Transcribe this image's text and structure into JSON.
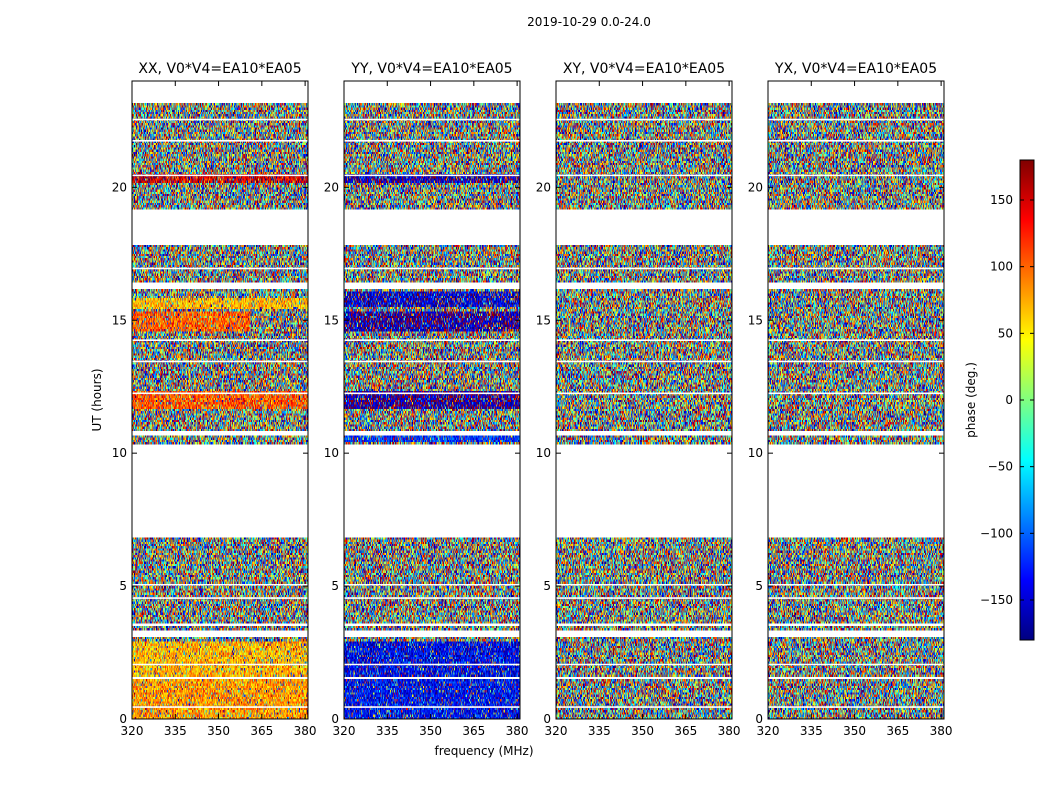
{
  "figure": {
    "suptitle": "2019-10-29 0.0-24.0",
    "xlabel": "frequency (MHz)",
    "ylabel": "UT (hours)"
  },
  "chart_data": {
    "type": "heatmap",
    "x_range": [
      320,
      381
    ],
    "y_range": [
      0,
      24
    ],
    "x_ticks": [
      320,
      335,
      350,
      365,
      380
    ],
    "y_ticks": [
      0,
      5,
      10,
      15,
      20
    ],
    "panels": [
      {
        "title": "XX, V0*V4=EA10*EA05",
        "pol": "XX"
      },
      {
        "title": "YY, V0*V4=EA10*EA05",
        "pol": "YY"
      },
      {
        "title": "XY, V0*V4=EA10*EA05",
        "pol": "XY"
      },
      {
        "title": "YX, V0*V4=EA10*EA05",
        "pol": "YX"
      }
    ],
    "data_intervals_hours": [
      [
        0.0,
        1.5
      ],
      [
        1.6,
        3.1
      ],
      [
        3.3,
        3.5
      ],
      [
        3.6,
        6.8
      ],
      [
        10.3,
        10.7
      ],
      [
        10.8,
        16.2
      ],
      [
        16.4,
        17.8
      ],
      [
        19.2,
        23.2
      ]
    ],
    "horizontal_gap_lines_hours": [
      0.45,
      2.05,
      4.55,
      5.05,
      12.25,
      13.45,
      14.25,
      16.95,
      20.45,
      21.75,
      22.55
    ],
    "coherent_bands": [
      {
        "pol": "XX",
        "range": [
          0.0,
          1.5
        ],
        "phase_deg": 80,
        "x_to": 381
      },
      {
        "pol": "XX",
        "range": [
          1.6,
          2.9
        ],
        "phase_deg": 70,
        "x_to": 381
      },
      {
        "pol": "XX",
        "range": [
          11.7,
          12.3
        ],
        "phase_deg": 105,
        "x_to": 381
      },
      {
        "pol": "XX",
        "range": [
          14.6,
          15.3
        ],
        "phase_deg": 100,
        "x_to": 361
      },
      {
        "pol": "XX",
        "range": [
          15.4,
          15.8
        ],
        "phase_deg": 70,
        "x_to": 381
      },
      {
        "pol": "XX",
        "range": [
          20.2,
          20.5
        ],
        "phase_deg": 150,
        "x_to": 381
      },
      {
        "pol": "YY",
        "range": [
          0.0,
          1.5
        ],
        "phase_deg": -135,
        "x_to": 381
      },
      {
        "pol": "YY",
        "range": [
          1.6,
          2.9
        ],
        "phase_deg": -140,
        "x_to": 381
      },
      {
        "pol": "YY",
        "range": [
          10.4,
          10.7
        ],
        "phase_deg": -120,
        "x_to": 381
      },
      {
        "pol": "YY",
        "range": [
          11.7,
          12.3
        ],
        "phase_deg": -165,
        "x_to": 381
      },
      {
        "pol": "YY",
        "range": [
          14.6,
          15.3
        ],
        "phase_deg": -160,
        "x_to": 381
      },
      {
        "pol": "YY",
        "range": [
          15.5,
          16.1
        ],
        "phase_deg": -150,
        "x_to": 381
      },
      {
        "pol": "YY",
        "range": [
          20.2,
          20.5
        ],
        "phase_deg": -160,
        "x_to": 381
      }
    ],
    "colorbar": {
      "label": "phase (deg.)",
      "range": [
        -180,
        180
      ],
      "ticks": [
        -150,
        -100,
        -50,
        0,
        50,
        100,
        150
      ],
      "colormap": "jet"
    }
  }
}
